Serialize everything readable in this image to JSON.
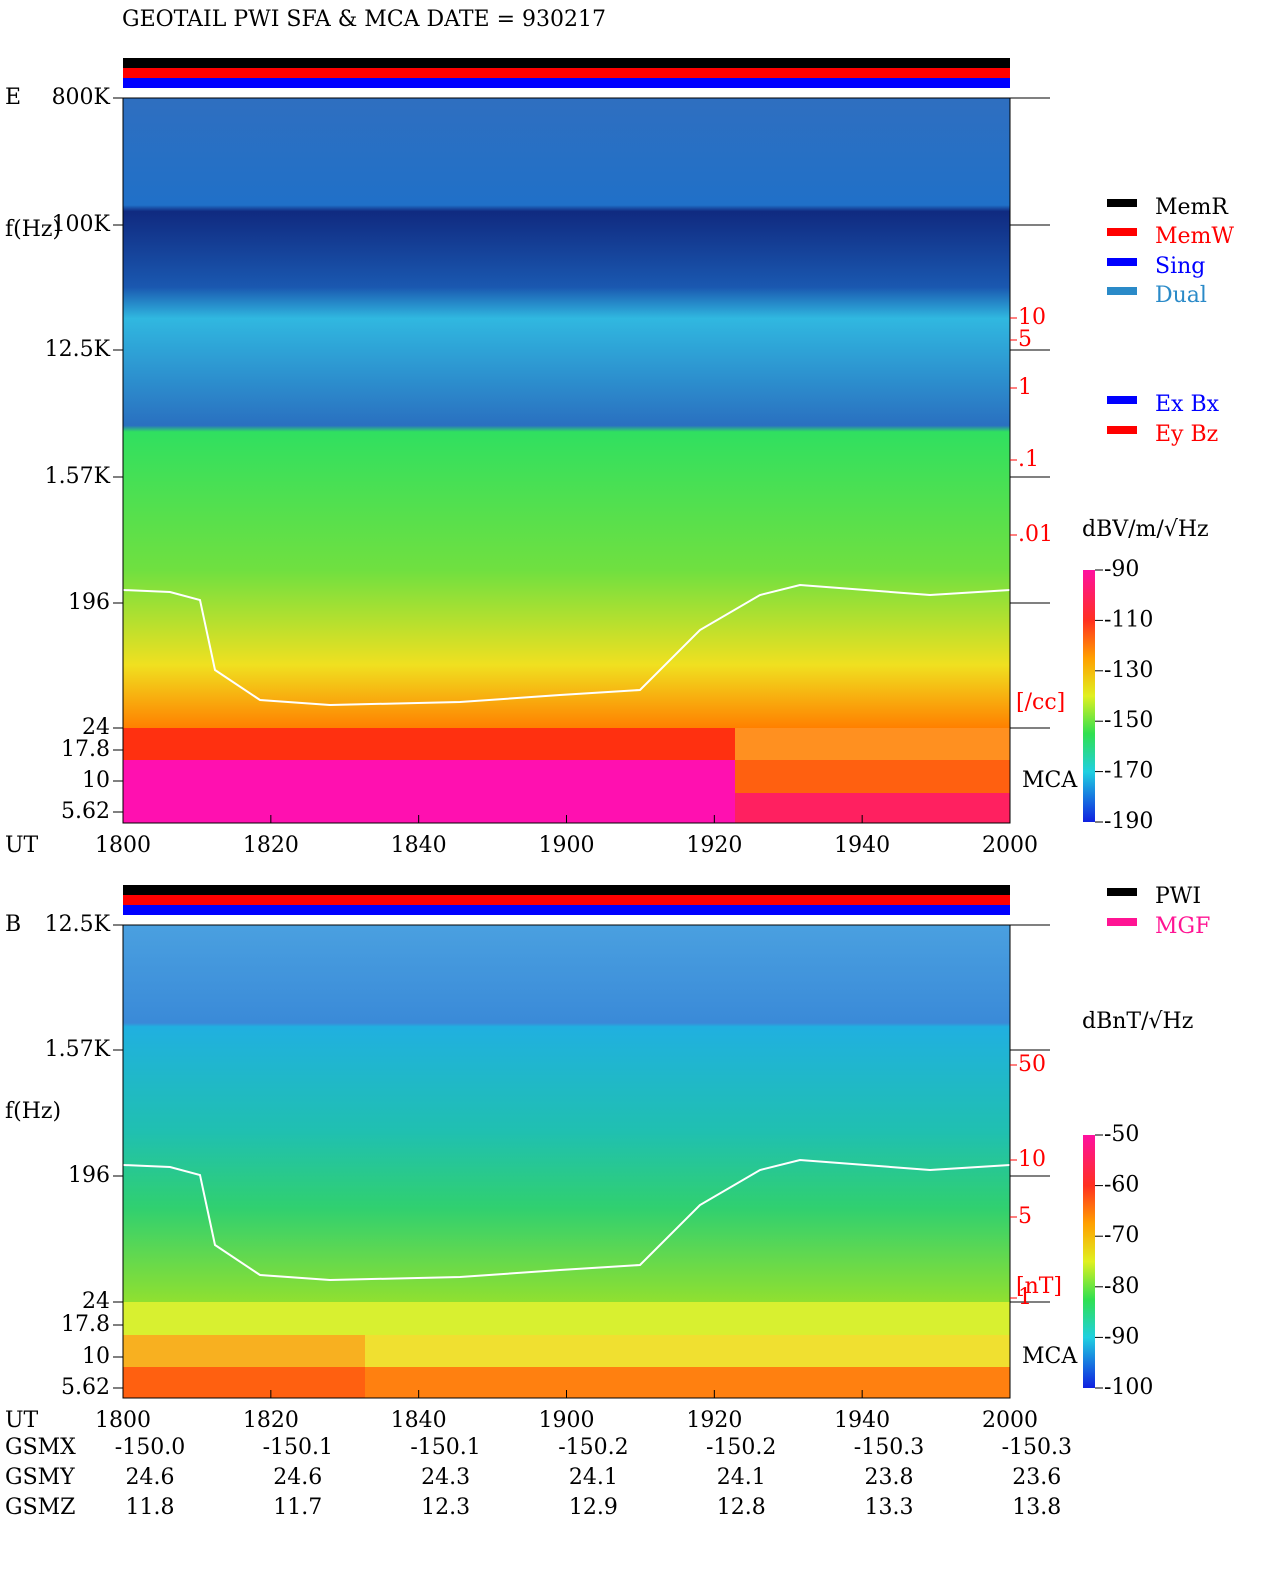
{
  "title": "GEOTAIL  PWI SFA & MCA   DATE = 930217",
  "panels": [
    {
      "label": "E",
      "ylabel": "f(Hz)",
      "yticks": [
        "800K",
        "100K",
        "12.5K",
        "1.57K",
        "196",
        "24",
        "17.8",
        "10",
        "5.62"
      ],
      "xlabel": "UT",
      "xticks": [
        "1800",
        "1820",
        "1840",
        "1900",
        "1920",
        "1940",
        "2000"
      ],
      "mca": "MCA",
      "density_ticks": [
        "10",
        "5",
        "1",
        ".1",
        ".01"
      ],
      "density_unit": "[/cc]",
      "legend": [
        {
          "name": "MemR",
          "color": "#000000"
        },
        {
          "name": "MemW",
          "color": "#ff0000"
        },
        {
          "name": "Sing",
          "color": "#0000ff"
        },
        {
          "name": "Dual",
          "color": "#2a8ac8"
        },
        {
          "name": "Ex Bx",
          "color": "#0000ff"
        },
        {
          "name": "Ey Bz",
          "color": "#ff0000"
        }
      ],
      "colorbar": {
        "title": "dBV/m/√Hz",
        "clim": [
          -90,
          -190
        ],
        "ticks": [
          -90,
          -110,
          -130,
          -150,
          -170,
          -190
        ]
      }
    },
    {
      "label": "B",
      "ylabel": "f(Hz)",
      "yticks": [
        "12.5K",
        "1.57K",
        "196",
        "24",
        "17.8",
        "10",
        "5.62"
      ],
      "xlabel": "UT",
      "xticks": [
        "1800",
        "1820",
        "1840",
        "1900",
        "1920",
        "1940",
        "2000"
      ],
      "mca": "MCA",
      "density_ticks": [
        "50",
        "10",
        "5",
        "1"
      ],
      "density_unit": "[nT]",
      "legend": [
        {
          "name": "PWI",
          "color": "#000000"
        },
        {
          "name": "MGF",
          "color": "#ff1493"
        }
      ],
      "colorbar": {
        "title": "dBnT/√Hz",
        "clim": [
          -50,
          -100
        ],
        "ticks": [
          -50,
          -60,
          -70,
          -80,
          -90,
          -100
        ]
      }
    }
  ],
  "orbit": [
    {
      "label": "GSMX",
      "values": [
        "-150.0",
        "-150.1",
        "-150.1",
        "-150.2",
        "-150.2",
        "-150.3",
        "-150.3"
      ]
    },
    {
      "label": "GSMY",
      "values": [
        "24.6",
        "24.6",
        "24.3",
        "24.1",
        "24.1",
        "23.8",
        "23.6"
      ]
    },
    {
      "label": "GSMZ",
      "values": [
        "11.8",
        "11.7",
        "12.3",
        "12.9",
        "12.8",
        "13.3",
        "13.8"
      ]
    }
  ]
}
